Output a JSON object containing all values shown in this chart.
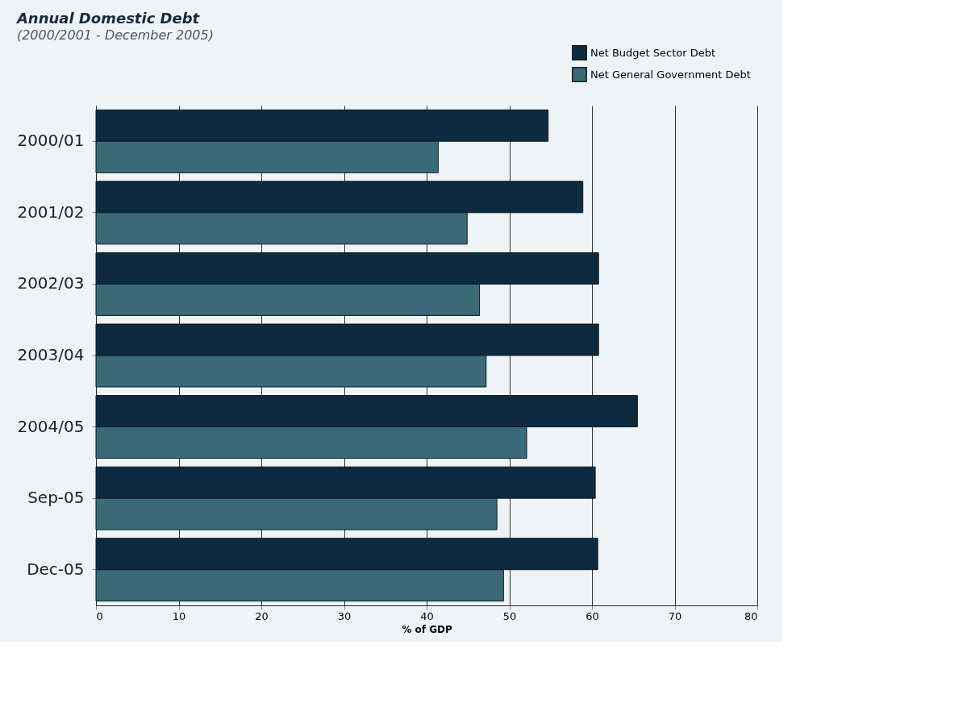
{
  "chart_data": {
    "type": "bar",
    "orientation": "horizontal",
    "title": "Annual Domestic Debt",
    "subtitle": "(2000/2001 - December 2005)",
    "xlabel": "% of GDP",
    "categories": [
      "2000/01",
      "2001/02",
      "2002/03",
      "2003/04",
      "2004/05",
      "Sep-05",
      "Dec-05"
    ],
    "series": [
      {
        "name": "Net Budget Sector Debt",
        "color": "#0d2a3f",
        "values": [
          54.7,
          58.9,
          60.8,
          60.8,
          65.5,
          60.4,
          60.7
        ]
      },
      {
        "name": "Net General Government Debt",
        "color": "#3a6a78",
        "values": [
          41.4,
          44.9,
          46.4,
          47.2,
          52.1,
          48.5,
          49.3
        ]
      }
    ],
    "xlim": [
      0,
      80
    ],
    "xticks": [
      0,
      10,
      20,
      30,
      40,
      50,
      60,
      70,
      80
    ],
    "grid": "x",
    "legend": "top right"
  }
}
